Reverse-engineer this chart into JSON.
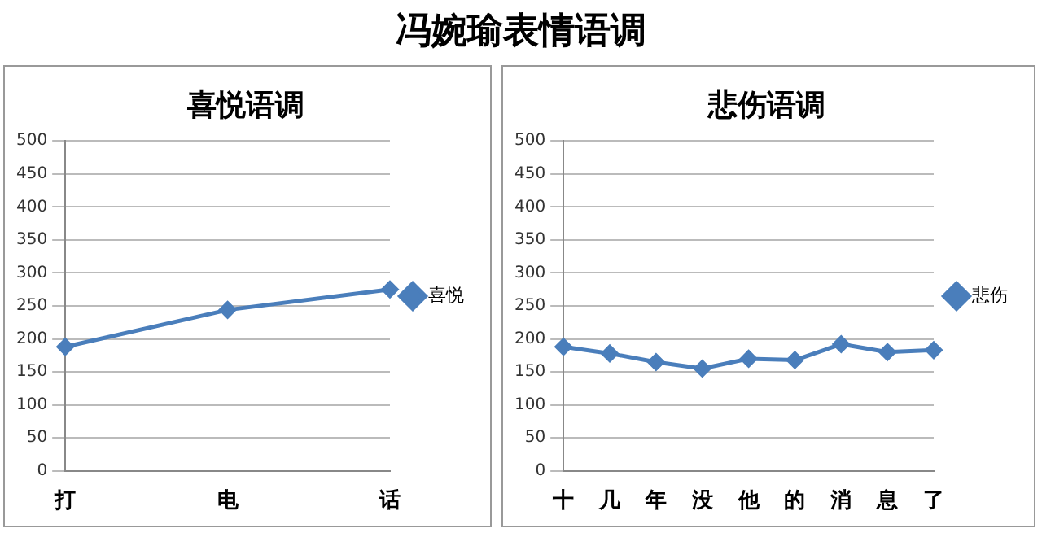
{
  "chart_data": [
    {
      "type": "other",
      "title": "冯婉瑜表情语调"
    },
    {
      "type": "line",
      "title": "喜悦语调",
      "categories": [
        "打",
        "电",
        "话"
      ],
      "series": [
        {
          "name": "喜悦",
          "color": "#4a7ebb",
          "values": [
            188,
            244,
            275
          ]
        }
      ],
      "ylim": [
        0,
        500
      ],
      "yticks": [
        0,
        50,
        100,
        150,
        200,
        250,
        300,
        350,
        400,
        450,
        500
      ],
      "grid": "y",
      "legend": "right",
      "marker": "diamond",
      "line_style": "solid"
    },
    {
      "type": "line",
      "title": "悲伤语调",
      "categories": [
        "十",
        "几",
        "年",
        "没",
        "他",
        "的",
        "消",
        "息",
        "了"
      ],
      "series": [
        {
          "name": "悲伤",
          "color": "#4a7ebb",
          "values": [
            188,
            178,
            165,
            155,
            170,
            168,
            192,
            180,
            183
          ]
        }
      ],
      "ylim": [
        0,
        500
      ],
      "yticks": [
        0,
        50,
        100,
        150,
        200,
        250,
        300,
        350,
        400,
        450,
        500
      ],
      "grid": "y",
      "legend": "right",
      "marker": "diamond",
      "line_style": "solid"
    }
  ]
}
